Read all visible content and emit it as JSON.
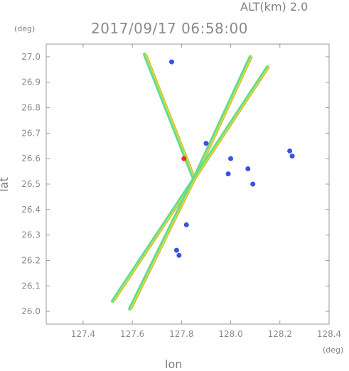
{
  "header": {
    "alt_label": "ALT(km) 2.0",
    "timestamp": "2017/09/17 06:58:00"
  },
  "axes": {
    "y_unit": "(deg)",
    "x_unit": "(deg)",
    "xlabel": "lon",
    "ylabel": "lat"
  },
  "colors": {
    "frame": "#9a9a9a",
    "green": "#7fe05a",
    "cyan": "#3fd8c8",
    "yellow": "#d8e83a",
    "orange": "#f0a020",
    "blue": "#3a52e0",
    "red": "#e83030"
  },
  "chart_data": {
    "type": "scatter",
    "xlim": [
      127.25,
      128.4
    ],
    "ylim": [
      25.95,
      27.05
    ],
    "xticks": [
      127.4,
      127.6,
      127.8,
      128.0,
      128.2,
      128.4
    ],
    "yticks": [
      26.0,
      26.1,
      26.2,
      26.3,
      26.4,
      26.5,
      26.6,
      26.7,
      26.8,
      26.9,
      27.0
    ],
    "xtick_labels": [
      "127.4",
      "127.6",
      "127.8",
      "128.0",
      "128.2",
      "128.4"
    ],
    "ytick_labels": [
      "26.0",
      "26.1",
      "26.2",
      "26.3",
      "26.4",
      "26.5",
      "26.6",
      "26.7",
      "26.8",
      "26.9",
      "27.0"
    ],
    "radar_origin": [
      127.85,
      26.52
    ],
    "beams": [
      {
        "from": [
          127.85,
          26.52
        ],
        "to": [
          127.65,
          27.01
        ]
      },
      {
        "from": [
          127.85,
          26.52
        ],
        "to": [
          128.08,
          27.0
        ]
      },
      {
        "from": [
          127.85,
          26.52
        ],
        "to": [
          128.15,
          26.96
        ]
      },
      {
        "from": [
          127.85,
          26.52
        ],
        "to": [
          127.52,
          26.04
        ]
      },
      {
        "from": [
          127.85,
          26.52
        ],
        "to": [
          127.59,
          26.01
        ]
      }
    ],
    "echoes": [
      {
        "lon": 128.24,
        "lat": 26.63,
        "color": "blue"
      },
      {
        "lon": 128.25,
        "lat": 26.61,
        "color": "blue"
      },
      {
        "lon": 127.76,
        "lat": 26.98,
        "color": "blue"
      },
      {
        "lon": 127.9,
        "lat": 26.66,
        "color": "blue"
      },
      {
        "lon": 128.0,
        "lat": 26.6,
        "color": "blue"
      },
      {
        "lon": 127.99,
        "lat": 26.54,
        "color": "blue"
      },
      {
        "lon": 128.09,
        "lat": 26.5,
        "color": "blue"
      },
      {
        "lon": 128.07,
        "lat": 26.56,
        "color": "blue"
      },
      {
        "lon": 127.82,
        "lat": 26.34,
        "color": "blue"
      },
      {
        "lon": 127.79,
        "lat": 26.22,
        "color": "blue"
      },
      {
        "lon": 127.78,
        "lat": 26.24,
        "color": "blue"
      },
      {
        "lon": 127.81,
        "lat": 26.6,
        "color": "red"
      }
    ]
  }
}
